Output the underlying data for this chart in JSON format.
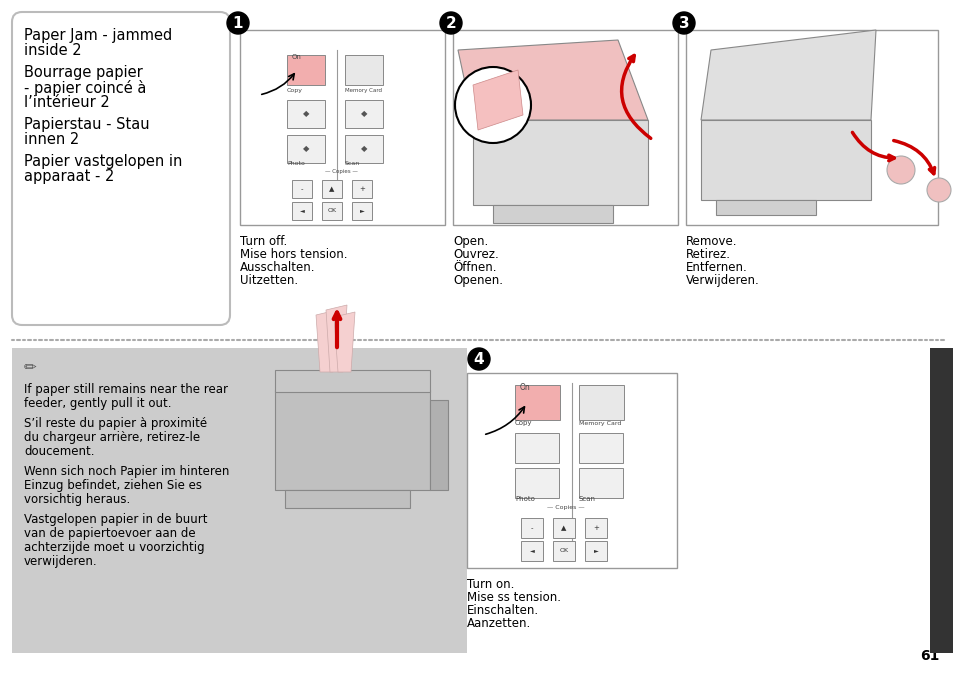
{
  "bg_color": "#ffffff",
  "page_number": "61",
  "sidebar_color": "#333333",
  "dotted_line_color": "#aaaaaa",
  "note_bg_color": "#cccccc",
  "title_lines": [
    "Paper Jam - jammed",
    "inside 2",
    "",
    "Bourrage papier",
    "- papier coincé à",
    "l’intérieur 2",
    "",
    "Papierstau - Stau",
    "innen 2",
    "",
    "Papier vastgelopen in",
    "apparaat - 2"
  ],
  "step1_label": "1",
  "step1_captions": [
    "Turn off.",
    "Mise hors tension.",
    "Ausschalten.",
    "Uitzetten."
  ],
  "step2_label": "2",
  "step2_captions": [
    "Open.",
    "Ouvrez.",
    "Öffnen.",
    "Openen."
  ],
  "step3_label": "3",
  "step3_captions": [
    "Remove.",
    "Retirez.",
    "Entfernen.",
    "Verwijderen."
  ],
  "step4_label": "4",
  "step4_captions": [
    "Turn on.",
    "Mise ss tension.",
    "Einschalten.",
    "Aanzetten."
  ],
  "note_lines": [
    "If paper still remains near the rear",
    "feeder, gently pull it out.",
    "",
    "S’il reste du papier à proximité",
    "du chargeur arrière, retirez-le",
    "doucement.",
    "",
    "Wenn sich noch Papier im hinteren",
    "Einzug befindet, ziehen Sie es",
    "vorsichtig heraus.",
    "",
    "Vastgelopen papier in de buurt",
    "van de papiertoevoer aan de",
    "achterzijde moet u voorzichtig",
    "verwijderen."
  ],
  "font_size_title": 10.5,
  "font_size_caption": 8.5,
  "font_size_note": 8.5,
  "font_size_step_num": 11,
  "font_size_page": 10
}
